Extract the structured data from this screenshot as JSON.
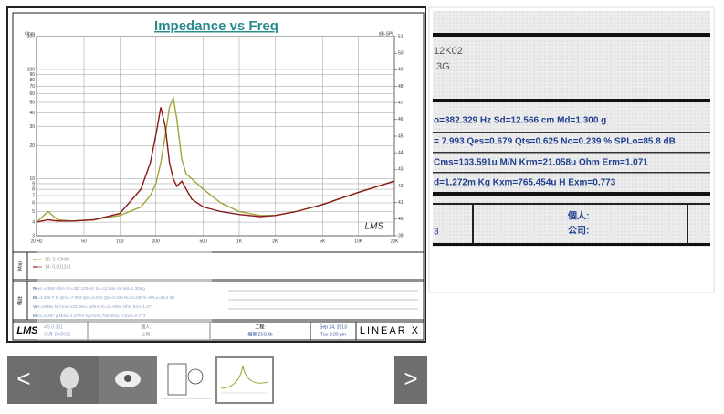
{
  "chart": {
    "type": "line",
    "title": "Impedance vs Freq",
    "y_label": "Ohm",
    "y2_label": "dB-SPL",
    "log_x": true,
    "log_y": true,
    "grid": true,
    "x": [
      20,
      25,
      30,
      40,
      60,
      100,
      150,
      180,
      200,
      220,
      240,
      260,
      280,
      300,
      330,
      360,
      400,
      500,
      700,
      1000,
      1500,
      2000,
      3000,
      5000,
      10000,
      20000
    ],
    "series": [
      {
        "name": "10: 2.4OHM",
        "color": "#a3a33a",
        "values": [
          4,
          5,
          4.2,
          4.1,
          4.2,
          4.6,
          5.5,
          7,
          9,
          14,
          25,
          45,
          55,
          35,
          15,
          11,
          10,
          8,
          6,
          5,
          4.6,
          4.6,
          5,
          5.8,
          7.5,
          9.5
        ]
      },
      {
        "name": "14: 0.0012x1",
        "color": "#8b1a1a",
        "values": [
          4,
          4.2,
          4.1,
          4.1,
          4.2,
          4.8,
          8,
          14,
          25,
          45,
          30,
          14,
          10,
          8.5,
          9.5,
          8,
          6.5,
          5.5,
          5,
          4.7,
          4.5,
          4.6,
          5,
          5.8,
          7.5,
          9.5
        ]
      }
    ],
    "xlim": [
      20,
      20000
    ],
    "xticks": [
      {
        "value": 20,
        "label": "20 Hz"
      },
      50,
      100,
      200,
      500,
      {
        "value": 1000,
        "label": "1K"
      },
      {
        "value": 2000,
        "label": "2K"
      },
      {
        "value": 5000,
        "label": "5K"
      },
      {
        "value": 10000,
        "label": "10K"
      },
      {
        "value": 20000,
        "label": "20K"
      }
    ],
    "ylim": [
      3,
      200
    ],
    "yticks": [
      3,
      4,
      5,
      6,
      7,
      8,
      9,
      10,
      20,
      30,
      40,
      50,
      60,
      70,
      80,
      90,
      100,
      200
    ],
    "y2lim": [
      39,
      51
    ],
    "y2ticks": [
      39,
      40,
      41,
      42,
      43,
      44,
      45,
      46,
      47,
      48,
      49,
      50,
      51
    ]
  },
  "info": {
    "legend_label": "Map",
    "notes_label": "備註",
    "rows": [
      "Revc=4.690 Ohm  Fo=382.329 Hz  Sd=12.566 cm  Md=1.300 g",
      "BL=4.286 T·M  Qms=7.993  Qes=0.679  Qts=0.625  No=0.239 %  SPLo=85.8 dB",
      "Vas=2936u M  Cms=133.591u M/N  Krm=21.058u Ohm  Erm=1.071",
      "Mms=1.297 g  Mmd=1.272m Kg  Kxm=765.454u H  Exm=0.773"
    ]
  },
  "footer": {
    "logo": "LMS",
    "version": "4.5.0.331",
    "date_built": "六月 26/2001",
    "person": "個人:",
    "company": "公司:",
    "project": "工程:",
    "file": "檔案:25G.lib",
    "date": "Sep 24, 2013",
    "time": "Tue 2:39 pm",
    "brand": "LINEAR X",
    "watermark": "LMS"
  },
  "zoom": {
    "lines": [
      "12K02",
      ".3G",
      "o=382.329 Hz  Sd=12.566 cm   Md=1.300 g",
      "= 7.993  Qes=0.679  Qts=0.625  No=0.239 %  SPLo=85.8 dB",
      "Cms=133.591u M/N  Krm=21.058u Ohm  Erm=1.071",
      "d=1.272m Kg  Kxm=765.454u H  Exm=0.773"
    ],
    "person": "個人:",
    "company": "公司:",
    "left": "3"
  },
  "nav": {
    "prev": "<",
    "next": ">"
  }
}
